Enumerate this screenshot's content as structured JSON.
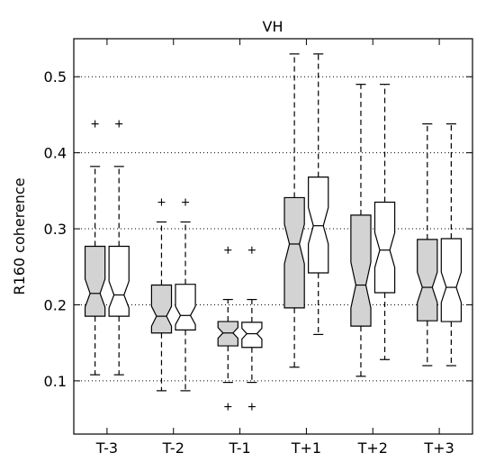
{
  "chart_data": {
    "type": "boxplot",
    "title": "VH",
    "ylabel": "R160 coherence",
    "xlabel": "",
    "ylim": [
      0.03,
      0.55
    ],
    "yticks": [
      0.1,
      0.2,
      0.3,
      0.4,
      0.5
    ],
    "ytick_labels": [
      "0.1",
      "0.2",
      "0.3",
      "0.4",
      "0.5"
    ],
    "grid": "y-dotted",
    "notched": true,
    "categories": [
      "T-3",
      "T-2",
      "T-1",
      "T+1",
      "T+2",
      "T+3"
    ],
    "series": [
      {
        "fill": "#d3d3d3",
        "boxes": [
          {
            "whislo": 0.108,
            "q1": 0.185,
            "med": 0.215,
            "q3": 0.277,
            "whishi": 0.382,
            "notchlo": 0.197,
            "notchhi": 0.234,
            "fliers": [
              0.438
            ]
          },
          {
            "whislo": 0.087,
            "q1": 0.163,
            "med": 0.185,
            "q3": 0.226,
            "whishi": 0.309,
            "notchlo": 0.172,
            "notchhi": 0.198,
            "fliers": [
              0.335
            ]
          },
          {
            "whislo": 0.098,
            "q1": 0.146,
            "med": 0.163,
            "q3": 0.178,
            "whishi": 0.207,
            "notchlo": 0.156,
            "notchhi": 0.17,
            "fliers": [
              0.272,
              0.066
            ]
          },
          {
            "whislo": 0.118,
            "q1": 0.196,
            "med": 0.28,
            "q3": 0.341,
            "whishi": 0.53,
            "notchlo": 0.254,
            "notchhi": 0.306,
            "fliers": []
          },
          {
            "whislo": 0.106,
            "q1": 0.172,
            "med": 0.226,
            "q3": 0.318,
            "whishi": 0.49,
            "notchlo": 0.196,
            "notchhi": 0.256,
            "fliers": []
          },
          {
            "whislo": 0.12,
            "q1": 0.179,
            "med": 0.223,
            "q3": 0.286,
            "whishi": 0.438,
            "notchlo": 0.203,
            "notchhi": 0.243,
            "fliers": []
          }
        ]
      },
      {
        "fill": "#ffffff",
        "boxes": [
          {
            "whislo": 0.108,
            "q1": 0.185,
            "med": 0.213,
            "q3": 0.277,
            "whishi": 0.382,
            "notchlo": 0.196,
            "notchhi": 0.231,
            "fliers": [
              0.438
            ]
          },
          {
            "whislo": 0.087,
            "q1": 0.167,
            "med": 0.186,
            "q3": 0.227,
            "whishi": 0.309,
            "notchlo": 0.174,
            "notchhi": 0.198,
            "fliers": [
              0.335
            ]
          },
          {
            "whislo": 0.098,
            "q1": 0.144,
            "med": 0.162,
            "q3": 0.177,
            "whishi": 0.207,
            "notchlo": 0.155,
            "notchhi": 0.169,
            "fliers": [
              0.272,
              0.066
            ]
          },
          {
            "whislo": 0.161,
            "q1": 0.242,
            "med": 0.304,
            "q3": 0.368,
            "whishi": 0.53,
            "notchlo": 0.28,
            "notchhi": 0.328,
            "fliers": []
          },
          {
            "whislo": 0.128,
            "q1": 0.216,
            "med": 0.272,
            "q3": 0.335,
            "whishi": 0.49,
            "notchlo": 0.249,
            "notchhi": 0.295,
            "fliers": []
          },
          {
            "whislo": 0.12,
            "q1": 0.178,
            "med": 0.223,
            "q3": 0.287,
            "whishi": 0.438,
            "notchlo": 0.203,
            "notchhi": 0.243,
            "fliers": []
          }
        ]
      }
    ]
  }
}
